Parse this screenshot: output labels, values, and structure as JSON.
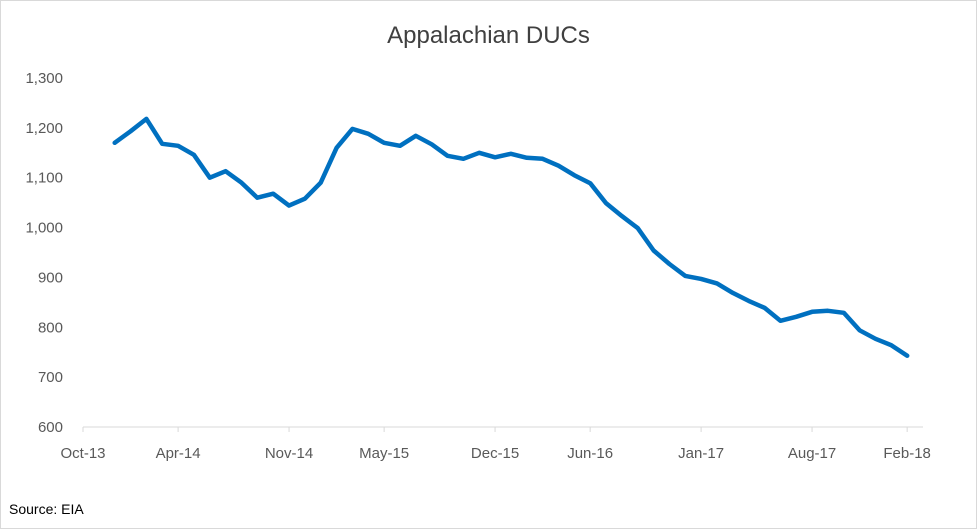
{
  "chart_data": {
    "type": "line",
    "title": "Appalachian DUCs",
    "xlabel": "",
    "ylabel": "",
    "ylim": [
      600,
      1300
    ],
    "yticks": [
      "600",
      "700",
      "800",
      "900",
      "1,000",
      "1,100",
      "1,200",
      "1,300"
    ],
    "ytick_values": [
      600,
      700,
      800,
      900,
      1000,
      1100,
      1200,
      1300
    ],
    "xtick_labels": [
      "Oct-13",
      "Apr-14",
      "Nov-14",
      "May-15",
      "Dec-15",
      "Jun-16",
      "Jan-17",
      "Aug-17",
      "Feb-18"
    ],
    "xtick_months": [
      0,
      6,
      13,
      19,
      26,
      32,
      39,
      46,
      52
    ],
    "grid": false,
    "legend": "none",
    "series": [
      {
        "color": "#0070c0",
        "x": [
          "Dec-13",
          "Jan-14",
          "Feb-14",
          "Mar-14",
          "Apr-14",
          "May-14",
          "Jun-14",
          "Jul-14",
          "Aug-14",
          "Sep-14",
          "Oct-14",
          "Nov-14",
          "Dec-14",
          "Jan-15",
          "Feb-15",
          "Mar-15",
          "Apr-15",
          "May-15",
          "Jun-15",
          "Jul-15",
          "Aug-15",
          "Sep-15",
          "Oct-15",
          "Nov-15",
          "Dec-15",
          "Jan-16",
          "Feb-16",
          "Mar-16",
          "Apr-16",
          "May-16",
          "Jun-16",
          "Jul-16",
          "Aug-16",
          "Sep-16",
          "Oct-16",
          "Nov-16",
          "Dec-16",
          "Jan-17",
          "Feb-17",
          "Mar-17",
          "Apr-17",
          "May-17",
          "Jun-17",
          "Jul-17",
          "Aug-17",
          "Sep-17",
          "Oct-17",
          "Nov-17",
          "Dec-17",
          "Jan-18",
          "Feb-18"
        ],
        "x_months": [
          2,
          3,
          4,
          5,
          6,
          7,
          8,
          9,
          10,
          11,
          12,
          13,
          14,
          15,
          16,
          17,
          18,
          19,
          20,
          21,
          22,
          23,
          24,
          25,
          26,
          27,
          28,
          29,
          30,
          31,
          32,
          33,
          34,
          35,
          36,
          37,
          38,
          39,
          40,
          41,
          42,
          43,
          44,
          45,
          46,
          47,
          48,
          49,
          50,
          51,
          52
        ],
        "values": [
          1170,
          1193,
          1218,
          1168,
          1164,
          1146,
          1100,
          1113,
          1090,
          1060,
          1068,
          1044,
          1058,
          1090,
          1160,
          1198,
          1188,
          1170,
          1164,
          1184,
          1167,
          1144,
          1138,
          1150,
          1141,
          1148,
          1140,
          1138,
          1124,
          1105,
          1089,
          1049,
          1023,
          999,
          954,
          927,
          903,
          897,
          888,
          869,
          853,
          839,
          813,
          821,
          831,
          833,
          829,
          794,
          777,
          764,
          743
        ]
      }
    ],
    "source": "Source: EIA"
  }
}
